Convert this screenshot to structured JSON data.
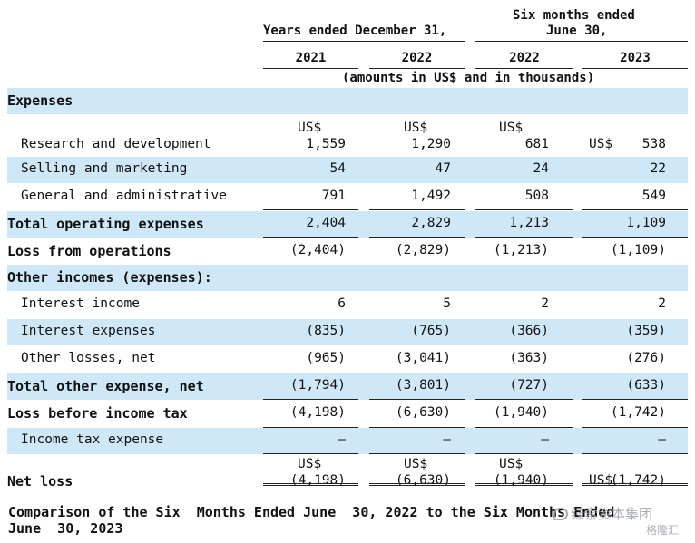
{
  "header": {
    "years_ended": "Years ended December  31,",
    "six_months_line1": "Six  months ended",
    "six_months_line2": "June  30,",
    "columns": [
      "2021",
      "2022",
      "2022",
      "2023"
    ],
    "units_note": "(amounts in US$ and in thousands)"
  },
  "table": {
    "rows": [
      {
        "label": "Expenses",
        "style": "section",
        "shade": true,
        "values": [
          "",
          "",
          "",
          ""
        ]
      },
      {
        "label": "Research and development",
        "style": "indent",
        "shade": false,
        "currency_above": [
          "US$",
          "US$",
          "US$",
          ""
        ],
        "currency_inline": [
          "",
          "",
          "",
          "US$"
        ],
        "values": [
          "1,559",
          "1,290",
          "681",
          "538"
        ]
      },
      {
        "label": "Selling and marketing",
        "style": "indent",
        "shade": true,
        "values": [
          "54",
          "47",
          "24",
          "22"
        ]
      },
      {
        "label": "General and administrative",
        "style": "indent",
        "shade": false,
        "values": [
          "791",
          "1,492",
          "508",
          "549"
        ]
      },
      {
        "label": "Total operating expenses",
        "style": "bold",
        "shade": true,
        "values": [
          "2,404",
          "2,829",
          "1,213",
          "1,109"
        ]
      },
      {
        "label": "Loss from operations",
        "style": "bold",
        "shade": false,
        "values": [
          "(2,404)",
          "(2,829)",
          "(1,213)",
          "(1,109)"
        ]
      },
      {
        "label": "Other incomes (expenses):",
        "style": "bold",
        "shade": true,
        "values": [
          "",
          "",
          "",
          ""
        ]
      },
      {
        "label": "Interest income",
        "style": "indent",
        "shade": false,
        "values": [
          "6",
          "5",
          "2",
          "2"
        ]
      },
      {
        "label": "Interest expenses",
        "style": "indent",
        "shade": true,
        "values": [
          "(835)",
          "(765)",
          "(366)",
          "(359)"
        ]
      },
      {
        "label": "Other losses, net",
        "style": "indent",
        "shade": false,
        "values": [
          "(965)",
          "(3,041)",
          "(363)",
          "(276)"
        ]
      },
      {
        "label": "Total other expense, net",
        "style": "bold",
        "shade": true,
        "values": [
          "(1,794)",
          "(3,801)",
          "(727)",
          "(633)"
        ]
      },
      {
        "label": "Loss before income tax",
        "style": "bold",
        "shade": false,
        "values": [
          "(4,198)",
          "(6,630)",
          "(1,940)",
          "(1,742)"
        ]
      },
      {
        "label": "Income tax expense",
        "style": "indent",
        "shade": true,
        "values": [
          "—",
          "—",
          "—",
          "—"
        ]
      },
      {
        "label": "Net loss",
        "style": "bold",
        "shade": false,
        "currency_above": [
          "US$",
          "US$",
          "US$",
          ""
        ],
        "currency_inline": [
          "",
          "",
          "",
          "US$"
        ],
        "values": [
          "(4,198)",
          "(6,630)",
          "(1,940)",
          "(1,742)"
        ]
      }
    ]
  },
  "caption": "Comparison of the Six  Months Ended June  30, 2022 to the Six Months Ended\nJune  30, 2023",
  "watermark": {
    "line1": "绿索资本集团",
    "line2": "格隆汇",
    "color": "#9aa0a6"
  },
  "colors": {
    "shade": "#cfe8f8",
    "text": "#111111"
  }
}
